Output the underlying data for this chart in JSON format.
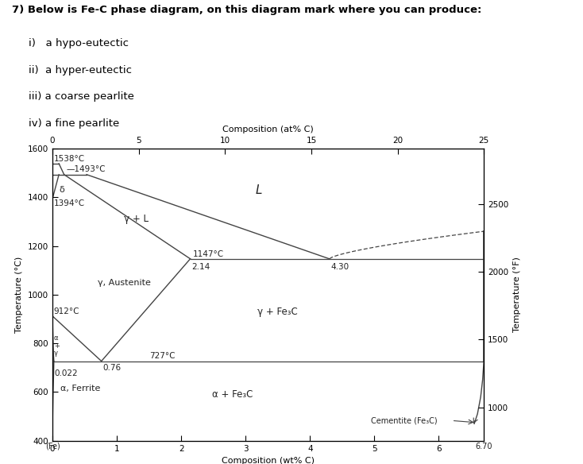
{
  "title_text": "7) Below is Fe-C phase diagram, on this diagram mark where you can produce:",
  "bullet_items": [
    "i)   a hypo-eutectic",
    "ii)  a hyper-eutectic",
    "iii) a coarse pearlite",
    "iv) a fine pearlite"
  ],
  "xlabel_bottom": "Composition (wt% C)",
  "xlabel_top": "Composition (at% C)",
  "ylabel_left": "Temperature (°C)",
  "ylabel_right": "Temperature (°F)",
  "xlim": [
    0,
    6.7
  ],
  "ylim": [
    400,
    1600
  ],
  "background_color": "#ffffff",
  "line_color": "#444444"
}
